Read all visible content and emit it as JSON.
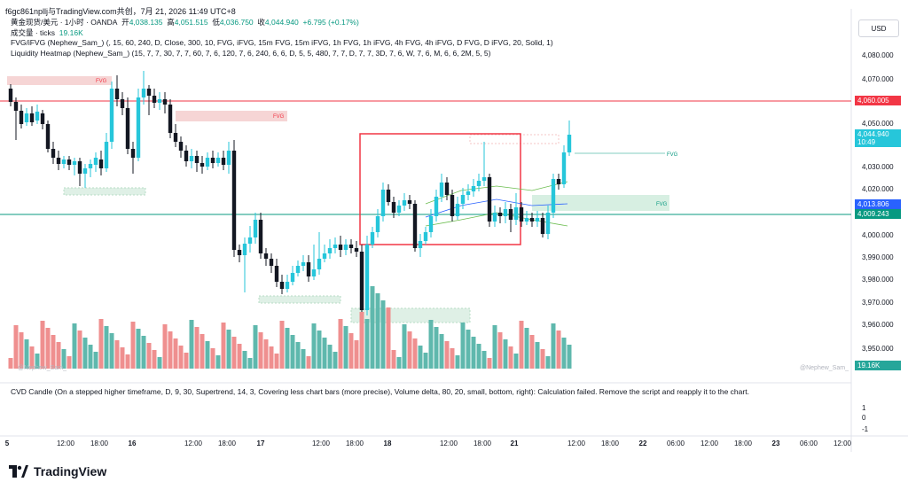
{
  "header": {
    "author_line": "f6gc861npllj与TradingView.com共创，7月 21, 2026 11:49 UTC+8"
  },
  "legend": {
    "symbol": "黄金现货/美元 · 1小时 · OANDA",
    "open_label": "开",
    "open_value": "4,038.135",
    "high_label": "高",
    "high_value": "4,051.515",
    "low_label": "低",
    "low_value": "4,036.750",
    "close_label": "收",
    "close_value": "4,044.940",
    "change": "+6.795 (+0.17%)",
    "volume_label": "成交量 · ticks",
    "volume_value": "19.16K",
    "fvg_indicator": "FVG/iFVG (Nephew_Sam_) (, 15, 60, 240, D, Close, 300, 10, FVG, iFVG, 15m FVG, 15m iFVG, 1h FVG, 1h iFVG, 4h FVG, 4h iFVG, D FVG, D iFVG, 20, Solid, 1)",
    "heatmap_indicator": "Liquidity Heatmap (Nephew_Sam_) (15, 7, 7, 30, 7, 7, 60, 7, 6, 120, 7, 6, 240, 6, 6, D, 5, 5, 480, 7, 7, D, 7, 7, 3D, 7, 6, W, 7, 6, M, 6, 6, 2M, 5, 5)"
  },
  "price_axis": {
    "currency": "USD",
    "labels": [
      "4,080.000",
      "4,070.000",
      "4,050.000",
      "4,030.000",
      "4,020.000",
      "4,000.000",
      "3,990.000",
      "3,980.000",
      "3,970.000",
      "3,960.000",
      "3,950.000"
    ],
    "badge_resistance": "4,060.005",
    "badge_current_price": "4,044.940",
    "badge_current_time": "10:49",
    "badge_mid": "4,013.806",
    "badge_support": "4,009.243",
    "badge_volume": "19.16K",
    "cvd_labels": [
      "1",
      "0",
      "-1"
    ]
  },
  "chart": {
    "fvg_label": "FVG",
    "watermark": "@Nephew_Sam_",
    "colors": {
      "up": "#26c6da",
      "down": "#131722",
      "resistance": "#f23645",
      "support": "#089981",
      "box": "#f23645",
      "vol_up": "#5fb8ad",
      "vol_down": "#ef8f8f"
    }
  },
  "cvd": {
    "message": "CVD Candle (On a stepped higher timeframe, D, 9, 30, Supertrend, 14, 3, Covering less chart bars (more precise), Volume delta, 80, 20, small, bottom, right): Calculation failed. Remove the script and reapply it to the chart."
  },
  "time_axis": {
    "labels": [
      "5",
      "12:00",
      "18:00",
      "16",
      "12:00",
      "18:00",
      "17",
      "12:00",
      "18:00",
      "18",
      "12:00",
      "18:00",
      "21",
      "12:00",
      "18:00",
      "22",
      "06:00",
      "12:00",
      "18:00",
      "23",
      "06:00",
      "12:00"
    ]
  },
  "footer": {
    "brand": "TradingView"
  }
}
